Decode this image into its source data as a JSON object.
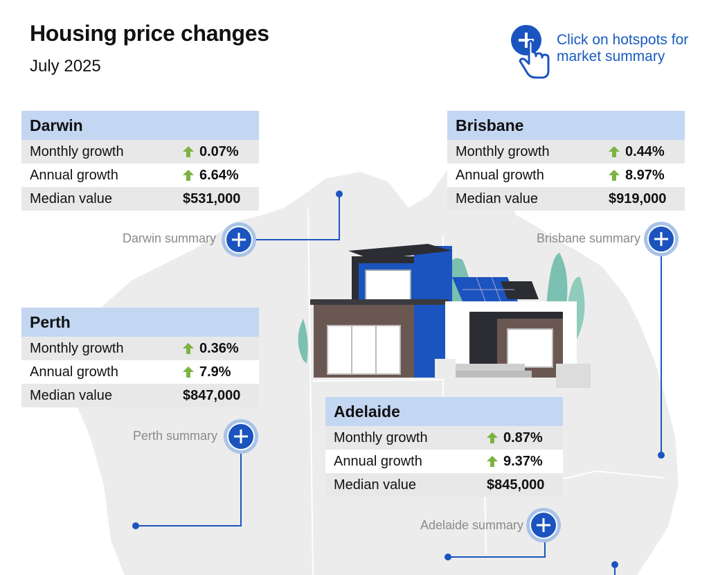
{
  "header": {
    "title": "Housing price changes",
    "subtitle": "July 2025",
    "hint": "Click on hotspots for market summary"
  },
  "colors": {
    "accent": "#1c54bf",
    "card_header": "#c3d6f2",
    "row_shade": "#e8e8e8",
    "up_arrow": "#7cb342",
    "map_fill": "#ececec",
    "summary_label": "#8a8a8a"
  },
  "icons": {
    "hint": "hand-pointer-plus-icon",
    "hotspot": "plus-circle-icon",
    "trend": "arrow-up-icon"
  },
  "cities": {
    "darwin": {
      "name": "Darwin",
      "monthly_label": "Monthly growth",
      "monthly": "0.07%",
      "annual_label": "Annual growth",
      "annual": "6.64%",
      "median_label": "Median value",
      "median": "$531,000",
      "summary": "Darwin summary"
    },
    "brisbane": {
      "name": "Brisbane",
      "monthly_label": "Monthly growth",
      "monthly": "0.44%",
      "annual_label": "Annual growth",
      "annual": "8.97%",
      "median_label": "Median value",
      "median": "$919,000",
      "summary": "Brisbane summary"
    },
    "perth": {
      "name": "Perth",
      "monthly_label": "Monthly growth",
      "monthly": "0.36%",
      "annual_label": "Annual growth",
      "annual": "7.9%",
      "median_label": "Median value",
      "median": "$847,000",
      "summary": "Perth summary"
    },
    "adelaide": {
      "name": "Adelaide",
      "monthly_label": "Monthly growth",
      "monthly": "0.87%",
      "annual_label": "Annual growth",
      "annual": "9.37%",
      "median_label": "Median value",
      "median": "$845,000",
      "summary": "Adelaide summary"
    }
  }
}
